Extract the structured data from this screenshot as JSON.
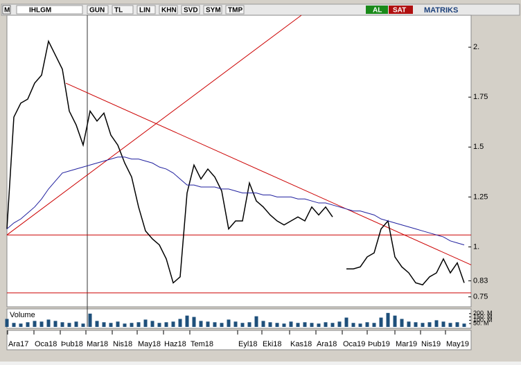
{
  "toolbar": {
    "logo": "M",
    "symbol": "IHLGM",
    "buttons": [
      "GUN",
      "TL",
      "LIN",
      "KHN",
      "SVD",
      "SYM",
      "TMP"
    ],
    "buy": "AL",
    "sell": "SAT",
    "brand": "MATRIKS"
  },
  "chart_data": {
    "type": "line",
    "ylim": [
      0.7,
      2.16
    ],
    "yticks": [
      {
        "value": 2,
        "label": "2."
      },
      1.75,
      1.5,
      1.25,
      {
        "value": 1,
        "label": "1."
      },
      0.83,
      0.75
    ],
    "xlim": [
      0,
      67
    ],
    "xticks": [
      {
        "value": 0.1,
        "label": "Ara17"
      },
      {
        "value": 3.9,
        "label": "Oca18"
      },
      {
        "value": 7.7,
        "label": "Þub18"
      },
      {
        "value": 11.4,
        "label": "Mar18"
      },
      {
        "value": 15.2,
        "label": "Nis18"
      },
      {
        "value": 18.8,
        "label": "May18"
      },
      {
        "value": 22.6,
        "label": "Haz18"
      },
      {
        "value": 26.4,
        "label": "Tem18"
      },
      {
        "value": 33.3,
        "label": "Eyl18"
      },
      {
        "value": 36.8,
        "label": "Eki18"
      },
      {
        "value": 40.8,
        "label": "Kas18"
      },
      {
        "value": 44.6,
        "label": "Ara18"
      },
      {
        "value": 48.4,
        "label": "Oca19"
      },
      {
        "value": 52,
        "label": "Þub19"
      },
      {
        "value": 56,
        "label": "Mar19"
      },
      {
        "value": 59.7,
        "label": "Nis19"
      },
      {
        "value": 63.3,
        "label": "May19"
      }
    ],
    "series": [
      {
        "color": "#000000",
        "values": [
          1.09,
          1.65,
          1.72,
          1.74,
          1.82,
          1.86,
          2.03,
          1.96,
          1.89,
          1.68,
          1.61,
          1.51,
          1.68,
          1.63,
          1.67,
          1.56,
          1.51,
          1.42,
          1.35,
          1.2,
          1.08,
          1.04,
          1.01,
          0.94,
          0.82,
          0.85,
          1.27,
          1.41,
          1.34,
          1.39,
          1.35,
          1.28,
          1.09,
          1.13,
          1.13,
          1.32,
          1.23,
          1.2,
          1.16,
          1.13,
          1.11,
          1.13,
          1.15,
          1.13,
          1.2,
          1.16,
          1.2,
          1.15,
          null,
          0.89,
          0.89,
          0.9,
          0.95,
          0.97,
          1.09,
          1.13,
          0.95,
          0.9,
          0.87,
          0.82,
          0.81,
          0.85,
          0.87,
          0.94,
          0.87,
          0.92,
          0.82
        ]
      },
      {
        "color": "#1f1f9e",
        "values": [
          1.09,
          1.12,
          1.14,
          1.17,
          1.2,
          1.24,
          1.29,
          1.33,
          1.37,
          1.38,
          1.39,
          1.4,
          1.41,
          1.42,
          1.43,
          1.44,
          1.45,
          1.45,
          1.44,
          1.44,
          1.43,
          1.42,
          1.4,
          1.39,
          1.37,
          1.34,
          1.31,
          1.31,
          1.3,
          1.3,
          1.3,
          1.29,
          1.29,
          1.28,
          1.27,
          1.27,
          1.27,
          1.26,
          1.26,
          1.25,
          1.25,
          1.25,
          1.24,
          1.24,
          1.23,
          1.22,
          1.22,
          1.21,
          1.2,
          1.19,
          1.18,
          1.18,
          1.17,
          1.16,
          1.14,
          1.13,
          1.12,
          1.11,
          1.1,
          1.09,
          1.08,
          1.07,
          1.06,
          1.05,
          1.03,
          1.02,
          1.01
        ]
      }
    ],
    "lines": [
      {
        "color": "#cc0000",
        "from": [
          0,
          1.06
        ],
        "to": [
          67,
          1.06
        ]
      },
      {
        "color": "#cc0000",
        "from": [
          0,
          0.77
        ],
        "to": [
          67,
          0.77
        ]
      },
      {
        "color": "#cc0000",
        "from": [
          0,
          1.06
        ],
        "to": [
          42.5,
          2.16
        ]
      },
      {
        "color": "#cc0000",
        "from": [
          8.5,
          1.82
        ],
        "to": [
          67,
          0.91
        ]
      }
    ],
    "crosshair": 11.6,
    "volume": {
      "label": "Volume",
      "color": "#1e4f7a",
      "ylim": [
        0,
        250
      ],
      "yticks": [
        {
          "value": 200,
          "label": "200. M"
        },
        {
          "value": 150,
          "label": "150. M"
        },
        {
          "value": 100,
          "label": "100. M"
        },
        {
          "value": 50,
          "label": "50. M"
        }
      ],
      "values": [
        120,
        60,
        50,
        70,
        90,
        80,
        110,
        90,
        70,
        60,
        80,
        50,
        200,
        90,
        70,
        60,
        80,
        50,
        60,
        70,
        110,
        90,
        60,
        70,
        80,
        120,
        170,
        150,
        90,
        80,
        70,
        60,
        110,
        80,
        60,
        70,
        160,
        90,
        70,
        60,
        50,
        80,
        60,
        70,
        60,
        50,
        70,
        60,
        80,
        140,
        60,
        50,
        70,
        60,
        140,
        210,
        170,
        120,
        80,
        70,
        60,
        70,
        100,
        80,
        60,
        70,
        50
      ]
    }
  }
}
